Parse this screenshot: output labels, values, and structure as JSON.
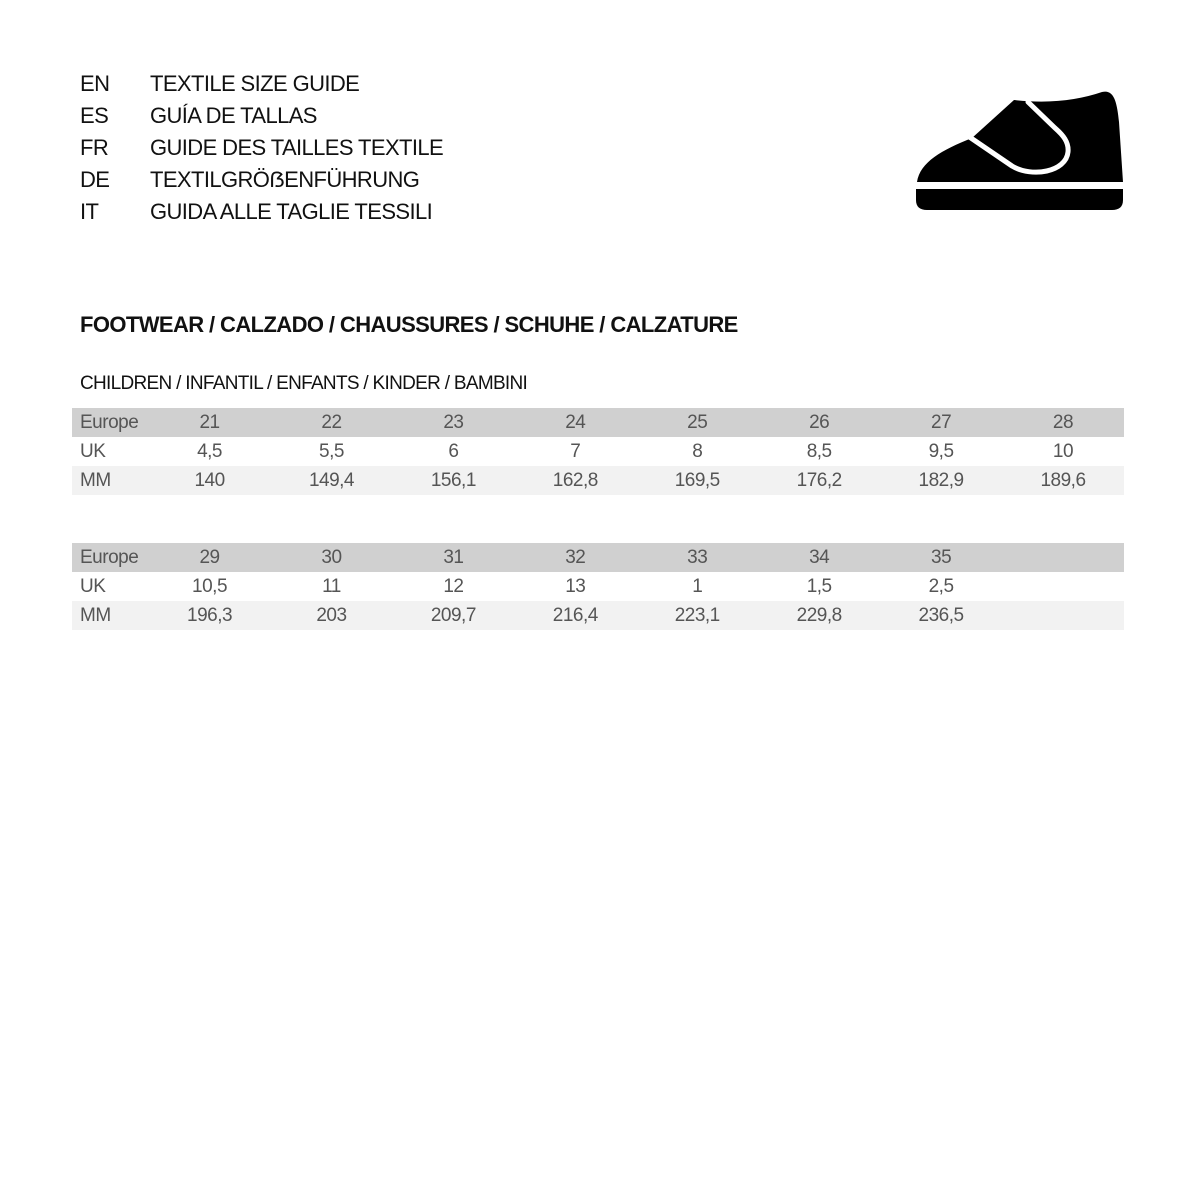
{
  "titles": [
    {
      "code": "EN",
      "text": "TEXTILE SIZE GUIDE"
    },
    {
      "code": "ES",
      "text": "GUÍA DE TALLAS"
    },
    {
      "code": "FR",
      "text": "GUIDE DES TAILLES TEXTILE"
    },
    {
      "code": "DE",
      "text": "TEXTILGRÖẞENFÜHRUNG"
    },
    {
      "code": "IT",
      "text": "GUIDA ALLE TAGLIE TESSILI"
    }
  ],
  "icon": "children-velcro-shoe-icon",
  "section_title": "FOOTWEAR / CALZADO / CHAUSSURES / SCHUHE / CALZATURE",
  "subsection_title": "CHILDREN / INFANTIL / ENFANTS / KINDER / BAMBINI",
  "tables": [
    {
      "rows": [
        {
          "label": "Europe",
          "values": [
            "21",
            "22",
            "23",
            "24",
            "25",
            "26",
            "27",
            "28"
          ]
        },
        {
          "label": "UK",
          "values": [
            "4,5",
            "5,5",
            "6",
            "7",
            "8",
            "8,5",
            "9,5",
            "10"
          ]
        },
        {
          "label": "MM",
          "values": [
            "140",
            "149,4",
            "156,1",
            "162,8",
            "169,5",
            "176,2",
            "182,9",
            "189,6"
          ]
        }
      ]
    },
    {
      "rows": [
        {
          "label": "Europe",
          "values": [
            "29",
            "30",
            "31",
            "32",
            "33",
            "34",
            "35",
            ""
          ]
        },
        {
          "label": "UK",
          "values": [
            "10,5",
            "11",
            "12",
            "13",
            "1",
            "1,5",
            "2,5",
            ""
          ]
        },
        {
          "label": "MM",
          "values": [
            "196,3",
            "203",
            "209,7",
            "216,4",
            "223,1",
            "229,8",
            "236,5",
            ""
          ]
        }
      ]
    }
  ],
  "colors": {
    "header_row": "#d0d0d0",
    "alt_row": "#f2f2f2",
    "table_text": "#555555"
  }
}
